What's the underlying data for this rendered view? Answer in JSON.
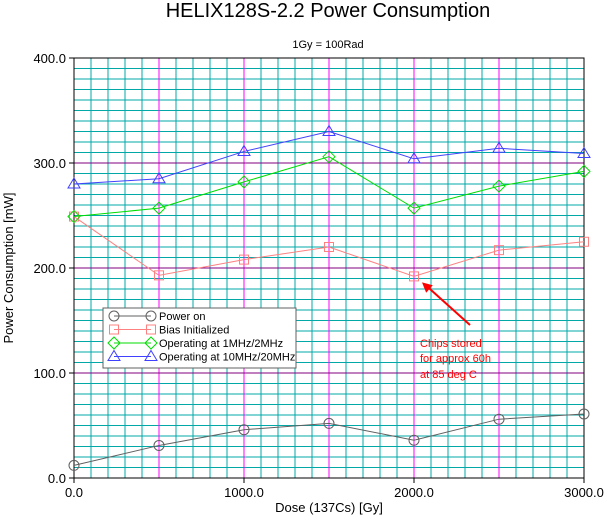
{
  "chart_data": {
    "type": "line",
    "title": "HELIX128S-2.2 Power Consumption",
    "subtitle": "1Gy = 100Rad",
    "xlabel": "Dose (137Cs) [Gy]",
    "ylabel": "Power Consumption [mW]",
    "xlim": [
      0,
      3000
    ],
    "ylim": [
      0,
      400
    ],
    "x_tick_labels": [
      "0.0",
      "1000.0",
      "2000.0",
      "3000.0"
    ],
    "y_tick_labels": [
      "0.0",
      "100.0",
      "200.0",
      "300.0",
      "400.0"
    ],
    "grid": true,
    "legend_position": "lower-left",
    "x": [
      0,
      500,
      1000,
      1500,
      2000,
      2500,
      3000
    ],
    "series": [
      {
        "name": "Power on",
        "color": "#606060",
        "marker": "circle",
        "values": [
          12,
          31,
          46,
          52,
          36,
          56,
          61
        ]
      },
      {
        "name": "Bias Initialized",
        "color": "#ff8080",
        "marker": "square",
        "values": [
          249,
          193,
          208,
          220,
          192,
          217,
          225
        ]
      },
      {
        "name": "Operating at 1MHz/2MHz",
        "color": "#00dd00",
        "marker": "diamond",
        "values": [
          249,
          257,
          282,
          306,
          257,
          278,
          292
        ]
      },
      {
        "name": "Operating at 10MHz/20MHz",
        "color": "#4040ff",
        "marker": "triangle",
        "values": [
          280,
          285,
          311,
          330,
          304,
          314,
          309
        ]
      }
    ],
    "annotation": {
      "lines": [
        "Chips stored",
        "for approx 60h",
        "at 85 deg C"
      ],
      "color": "#ff0000",
      "arrow_target": [
        2000,
        192
      ]
    }
  }
}
